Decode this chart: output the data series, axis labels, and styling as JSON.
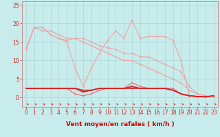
{
  "bg_color": "#c8ecec",
  "grid_color": "#b0d8d8",
  "line_color_light": "#f0a0a0",
  "line_color_med": "#e87070",
  "line_color_dark": "#dd2222",
  "xlabel": "Vent moyen/en rafales ( km/h )",
  "xlabel_color": "#cc0000",
  "xlim": [
    -0.5,
    23.5
  ],
  "ylim": [
    -2.5,
    26
  ],
  "yticks": [
    0,
    5,
    10,
    15,
    20,
    25
  ],
  "xticks": [
    0,
    1,
    2,
    3,
    4,
    5,
    6,
    7,
    8,
    9,
    10,
    11,
    12,
    13,
    14,
    15,
    16,
    17,
    18,
    19,
    20,
    21,
    22,
    23
  ],
  "tick_fontsize": 5.5,
  "xlabel_fontsize": 6.5,
  "series": [
    {
      "x": [
        0,
        1,
        2,
        3,
        4,
        5,
        6,
        7,
        8,
        9,
        10,
        11,
        12,
        13,
        14,
        15,
        16,
        17,
        18,
        19,
        20,
        21,
        22,
        23
      ],
      "y": [
        13,
        19,
        19,
        17,
        16,
        15,
        8,
        3,
        8,
        12,
        15.5,
        18,
        16,
        21,
        16,
        16.5,
        16.5,
        16.5,
        15.5,
        10,
        0.5,
        0.3,
        0.3,
        0.5
      ],
      "color": "#f0a0a0",
      "marker": "D",
      "markersize": 1.5,
      "linewidth": 0.8,
      "zorder": 2
    },
    {
      "x": [
        0,
        1,
        2,
        3,
        4,
        5,
        6,
        7,
        8,
        9,
        10,
        11,
        12,
        13,
        14,
        15,
        16,
        17,
        18,
        19,
        20,
        21,
        22,
        23
      ],
      "y": [
        13,
        19,
        19,
        17,
        16,
        15.5,
        16,
        16,
        15,
        14,
        13.5,
        13,
        12,
        12,
        11,
        11,
        10,
        9,
        8,
        7,
        3,
        1,
        0.5,
        0.3
      ],
      "color": "#f0a0a0",
      "marker": "D",
      "markersize": 1.5,
      "linewidth": 0.8,
      "zorder": 2
    },
    {
      "x": [
        0,
        1,
        2,
        3,
        4,
        5,
        6,
        7,
        8,
        9,
        10,
        11,
        12,
        13,
        14,
        15,
        16,
        17,
        18,
        19,
        20,
        21,
        22,
        23
      ],
      "y": [
        13,
        19,
        18,
        18,
        17,
        16,
        16,
        15,
        14,
        13,
        12,
        11,
        10,
        10,
        9,
        8,
        7,
        6,
        5,
        4,
        2,
        1,
        0.5,
        0.3
      ],
      "color": "#f0a0a0",
      "marker": "D",
      "markersize": 1.5,
      "linewidth": 0.8,
      "zorder": 2
    },
    {
      "x": [
        0,
        1,
        2,
        3,
        4,
        5,
        6,
        7,
        8,
        9,
        10,
        11,
        12,
        13,
        14,
        15,
        16,
        17,
        18,
        19,
        20,
        21,
        22,
        23
      ],
      "y": [
        2.5,
        2.5,
        2.5,
        2.5,
        2.5,
        2.5,
        1,
        0.5,
        1,
        2,
        2.5,
        2.5,
        2.5,
        4,
        3,
        2.5,
        2.5,
        2.5,
        2.5,
        1,
        0.5,
        0.3,
        0.2,
        0.5
      ],
      "color": "#e87070",
      "marker": "s",
      "markersize": 2,
      "linewidth": 0.9,
      "zorder": 3
    },
    {
      "x": [
        0,
        1,
        2,
        3,
        4,
        5,
        6,
        7,
        8,
        9,
        10,
        11,
        12,
        13,
        14,
        15,
        16,
        17,
        18,
        19,
        20,
        21,
        22,
        23
      ],
      "y": [
        2.5,
        2.5,
        2.5,
        2.5,
        2.5,
        2.5,
        2.5,
        1.5,
        2,
        2.5,
        2.5,
        2.5,
        2.5,
        3,
        2.5,
        2.5,
        2.5,
        2.5,
        2,
        1,
        0.5,
        0.3,
        0.2,
        0.5
      ],
      "color": "#dd2222",
      "marker": "s",
      "markersize": 2,
      "linewidth": 1.2,
      "zorder": 4
    },
    {
      "x": [
        0,
        1,
        2,
        3,
        4,
        5,
        6,
        7,
        8,
        9,
        10,
        11,
        12,
        13,
        14,
        15,
        16,
        17,
        18,
        19,
        20,
        21,
        22,
        23
      ],
      "y": [
        2.5,
        2.5,
        2.5,
        2.5,
        2.5,
        2.5,
        2.5,
        2,
        2,
        2.5,
        2.5,
        2.5,
        2.5,
        2.5,
        2.5,
        2.5,
        2.5,
        2.5,
        2,
        1,
        0.5,
        0.3,
        0.2,
        0.5
      ],
      "color": "#dd2222",
      "marker": "s",
      "markersize": 2,
      "linewidth": 1.2,
      "zorder": 4
    }
  ]
}
